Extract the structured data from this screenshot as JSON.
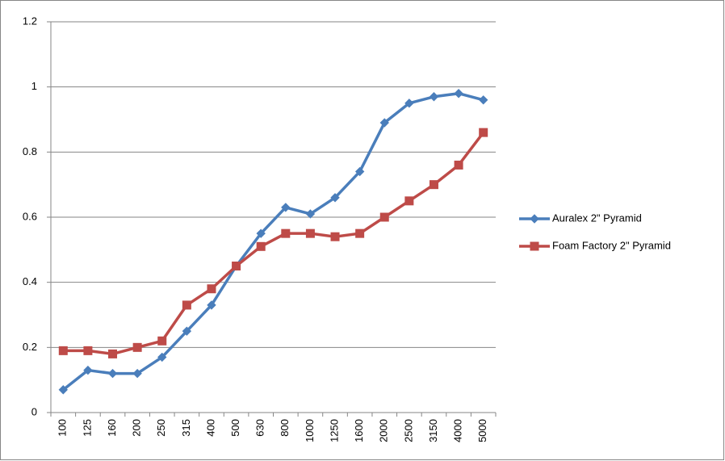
{
  "chart_data": {
    "type": "line",
    "categories": [
      "100",
      "125",
      "160",
      "200",
      "250",
      "315",
      "400",
      "500",
      "630",
      "800",
      "1000",
      "1250",
      "1600",
      "2000",
      "2500",
      "3150",
      "4000",
      "5000"
    ],
    "series": [
      {
        "name": "Auralex 2\" Pyramid",
        "color": "#4a7ebb",
        "marker": "diamond",
        "values": [
          0.07,
          0.13,
          0.12,
          0.12,
          0.17,
          0.25,
          0.33,
          0.45,
          0.55,
          0.63,
          0.61,
          0.66,
          0.74,
          0.89,
          0.95,
          0.97,
          0.98,
          0.96
        ]
      },
      {
        "name": "Foam Factory 2\" Pyramid",
        "color": "#be4b48",
        "marker": "square",
        "values": [
          0.19,
          0.19,
          0.18,
          0.2,
          0.22,
          0.33,
          0.38,
          0.45,
          0.51,
          0.55,
          0.55,
          0.54,
          0.55,
          0.6,
          0.65,
          0.7,
          0.76,
          0.86
        ]
      }
    ],
    "ylim": [
      0,
      1.2
    ],
    "yticks": [
      0,
      0.2,
      0.4,
      0.6,
      0.8,
      1,
      1.2
    ],
    "grid": true,
    "legend": "right"
  }
}
